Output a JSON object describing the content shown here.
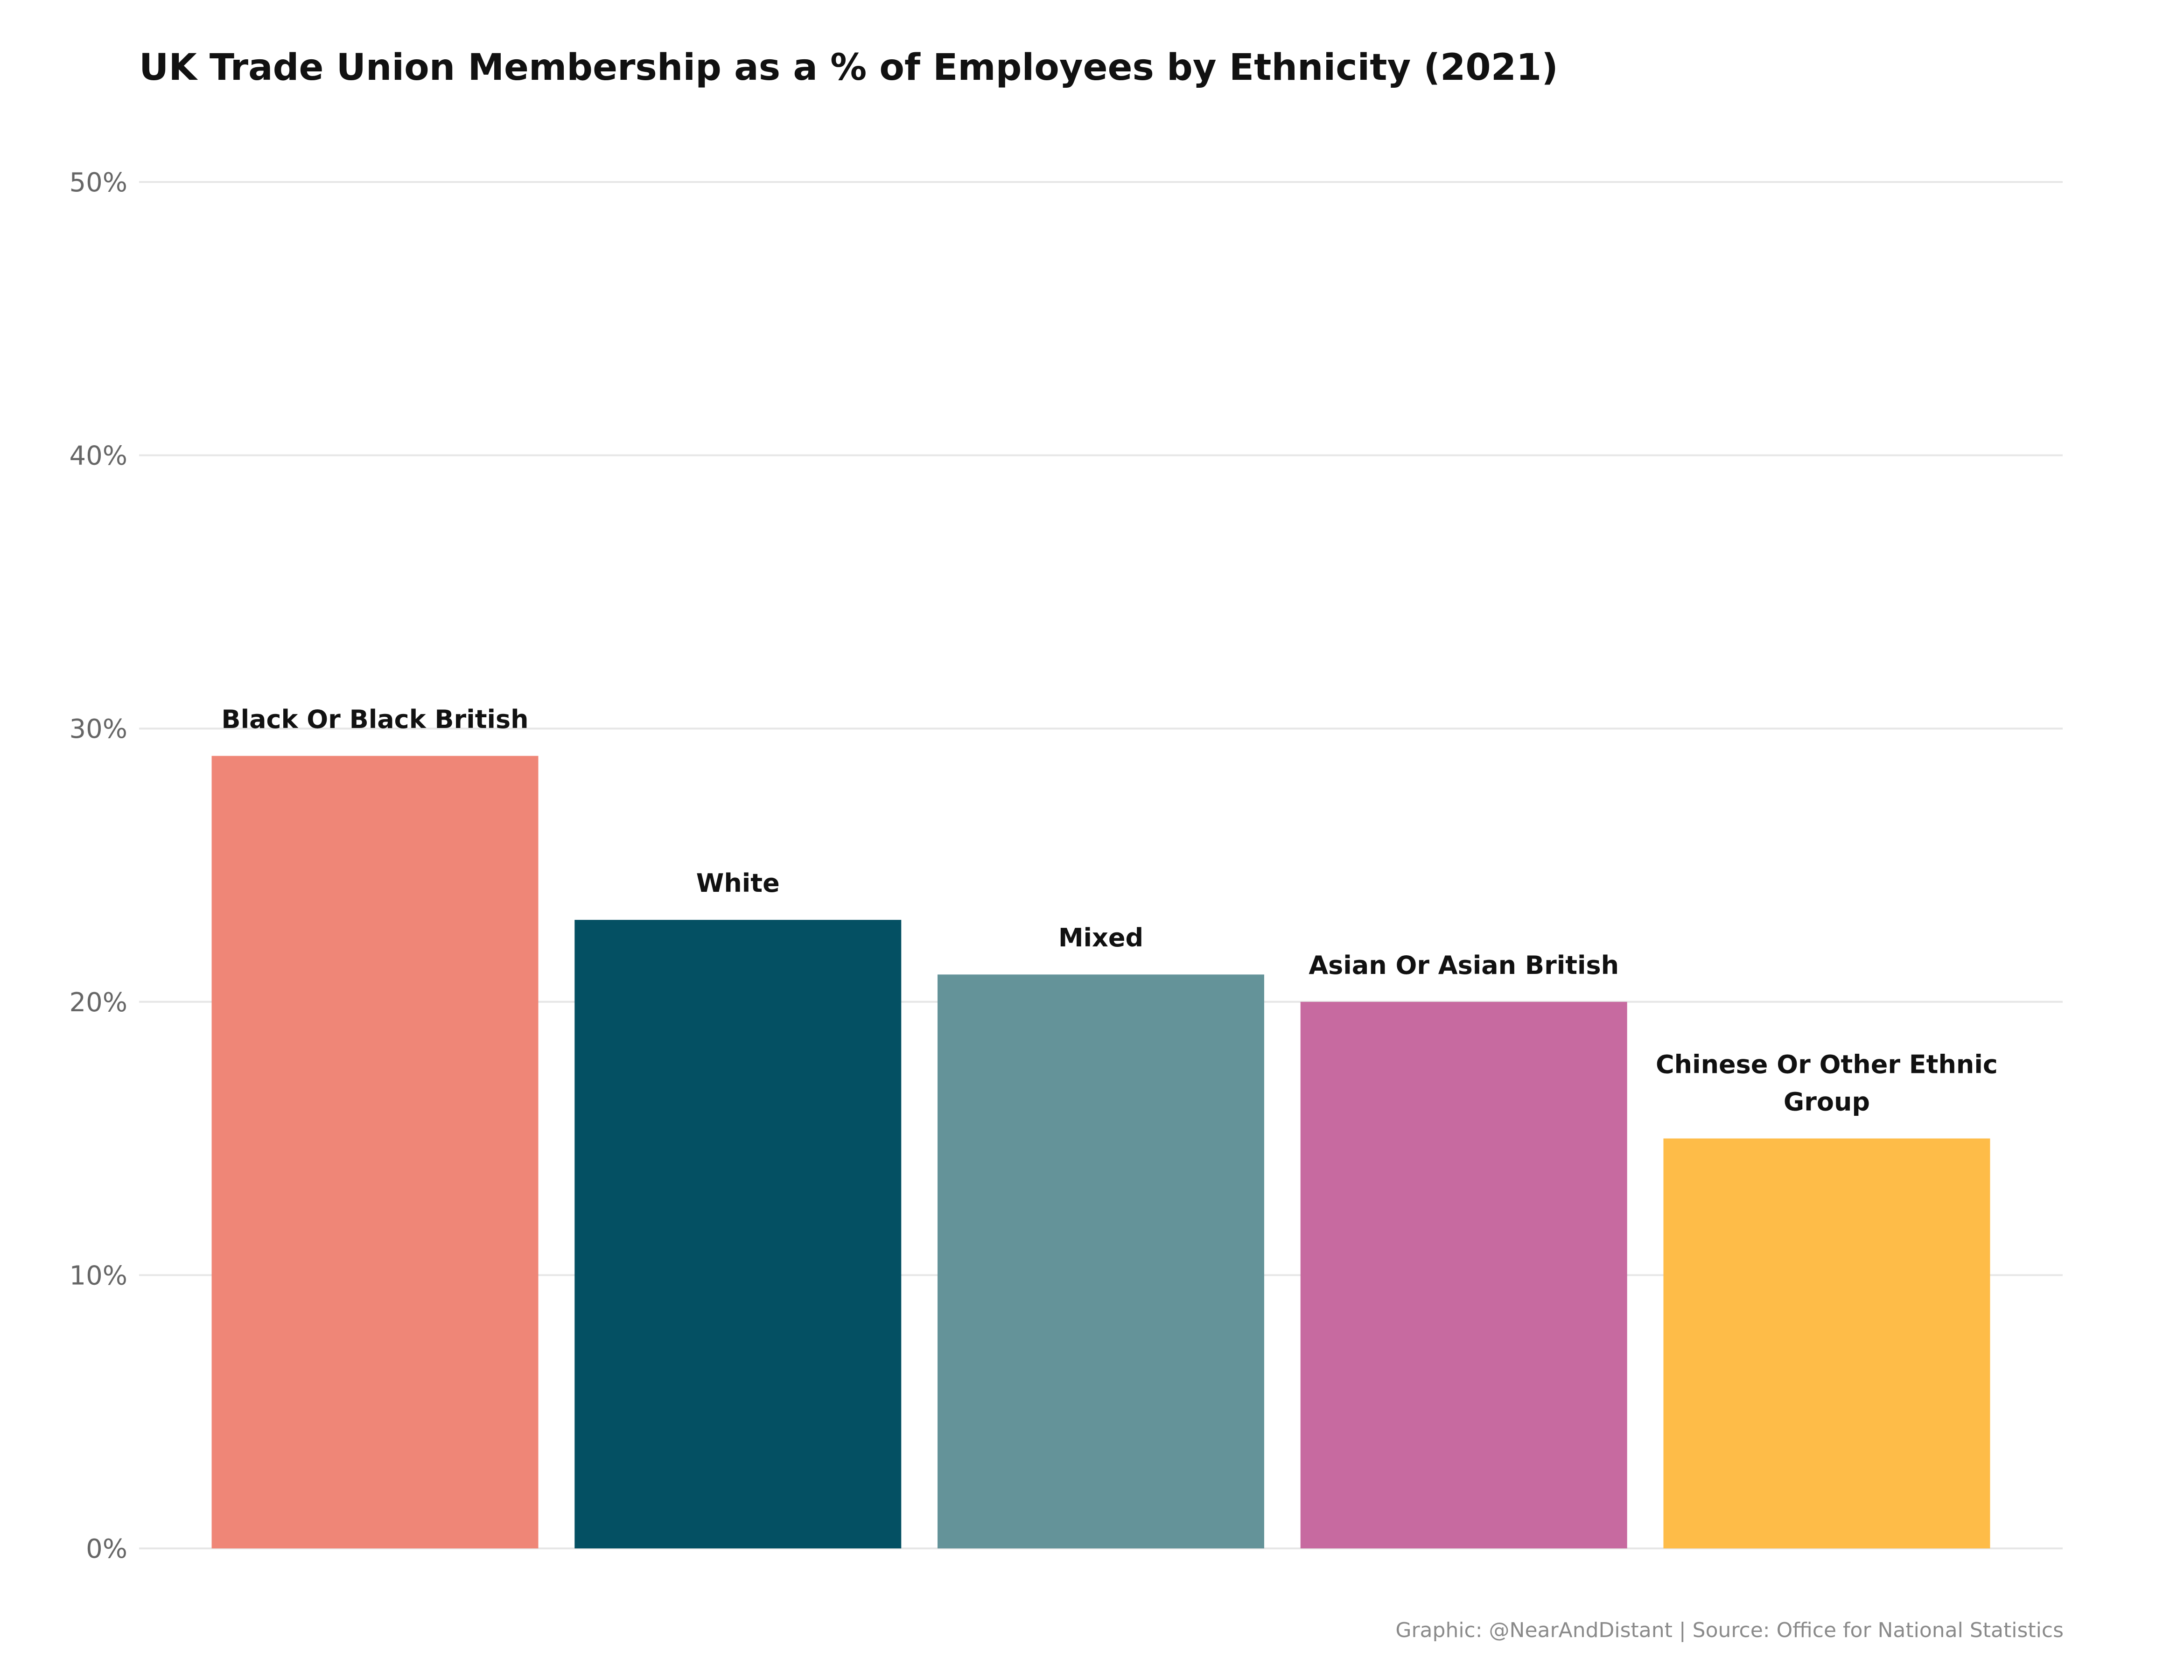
{
  "chart_data": {
    "type": "bar",
    "title": "UK Trade Union Membership as a % of Employees by Ethnicity (2021)",
    "xlabel": "",
    "ylabel": "",
    "ylim": [
      0,
      50
    ],
    "y_ticks": [
      0,
      10,
      20,
      30,
      40,
      50
    ],
    "y_tick_labels": [
      "0%",
      "10%",
      "20%",
      "30%",
      "40%",
      "50%"
    ],
    "grid": "horizontal",
    "legend": "none",
    "categories": [
      "Black Or Black British",
      "White",
      "Mixed",
      "Asian Or Asian British",
      "Chinese Or Other Ethnic Group"
    ],
    "values": [
      29,
      23,
      21,
      20,
      15
    ],
    "colors": [
      "#EF8677",
      "#045063",
      "#649399",
      "#C76AA0",
      "#FEBC48"
    ],
    "caption": "Graphic: @NearAndDistant | Source: Office for National Statistics"
  }
}
